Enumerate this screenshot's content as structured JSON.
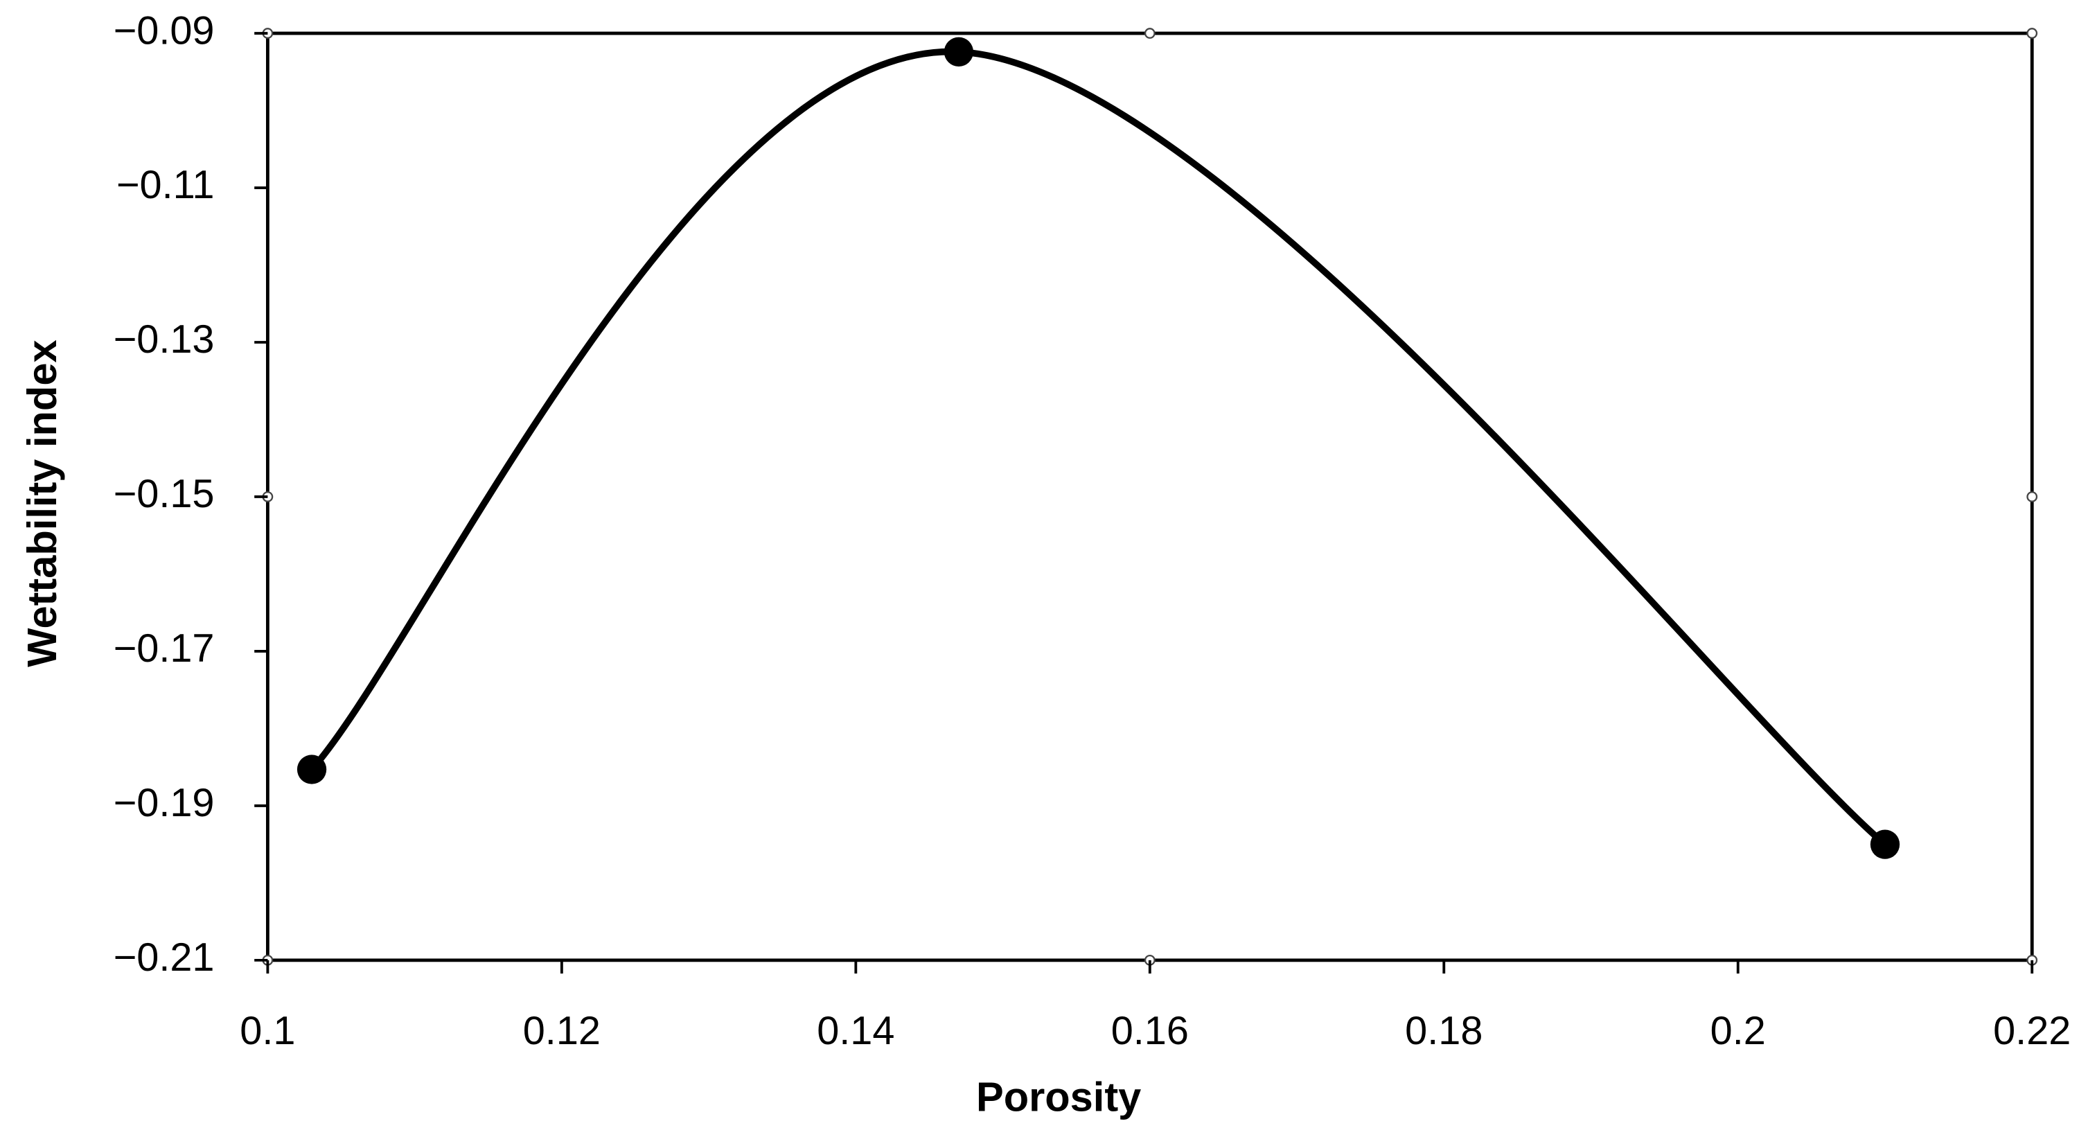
{
  "chart_data": {
    "type": "line",
    "x_label": "Porosity",
    "y_label": "Wettability index",
    "x": [
      0.103,
      0.147,
      0.21
    ],
    "values": [
      -0.1853,
      -0.0924,
      -0.195
    ],
    "color": "#000000",
    "smooth": true,
    "markers": true,
    "xlim": [
      0.1,
      0.22
    ],
    "xticks": [
      0.1,
      0.12,
      0.14,
      0.16,
      0.18,
      0.2,
      0.22
    ],
    "ylim": [
      -0.21,
      -0.09
    ],
    "yticks": [
      {
        "value": -0.21,
        "label": "−0.21"
      },
      {
        "value": -0.19,
        "label": "−0.19"
      },
      {
        "value": -0.17,
        "label": "−0.17"
      },
      {
        "value": -0.15,
        "label": "−0.15"
      },
      {
        "value": -0.13,
        "label": "−0.13"
      },
      {
        "value": -0.11,
        "label": "−0.11"
      },
      {
        "value": -0.09,
        "label": "−0.09"
      }
    ]
  }
}
